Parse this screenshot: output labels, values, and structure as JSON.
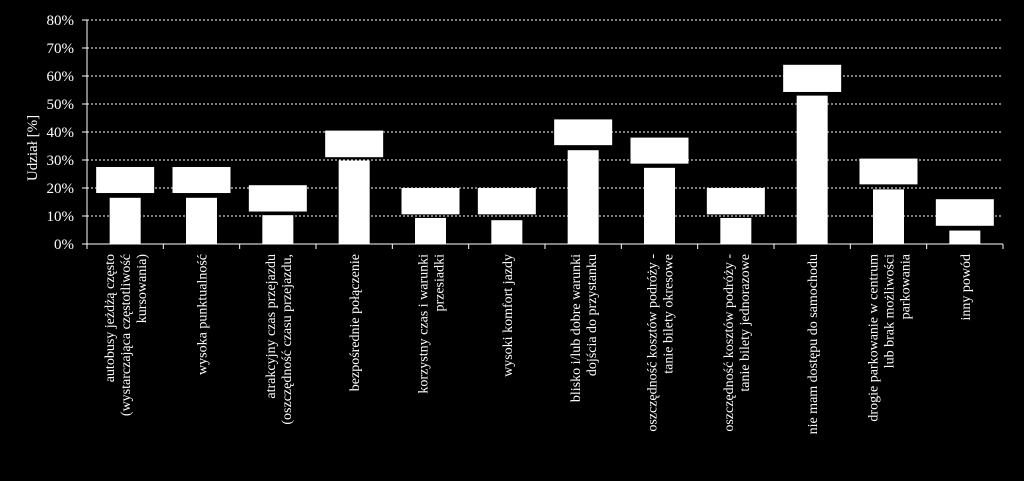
{
  "chart_data": {
    "type": "bar",
    "ylabel": "Udział [%]",
    "ylim": [
      0,
      80
    ],
    "yticks": [
      "0%",
      "10%",
      "20%",
      "30%",
      "40%",
      "50%",
      "60%",
      "70%",
      "80%"
    ],
    "grid": true,
    "categories": [
      [
        "autobusy jeżdżą często",
        "(wystarczająca częstotliwość",
        "kursowania)"
      ],
      [
        "wysoka punktualność"
      ],
      [
        "atrakcyjny czas przejazdu",
        "(oszczędność czasu przejazdu,"
      ],
      [
        "bezpośrednie połączenie"
      ],
      [
        "korzystny czas i warunki",
        "przesiadki"
      ],
      [
        "wysoki komfort jazdy"
      ],
      [
        "blisko i/lub dobre warunki",
        "dojścia do przystanku"
      ],
      [
        "oszczędność kosztów podróży -",
        "tanie bilety okresowe"
      ],
      [
        "oszczędność kosztów podróży -",
        "tanie bilety jednorazowe"
      ],
      [
        "nie mam dostępu do samochodu"
      ],
      [
        "drogie parkowanie w centrum",
        "lub brak możliwości",
        "parkowania"
      ],
      [
        "inny powód"
      ]
    ],
    "series": [
      {
        "values": [
          16.5,
          16.5,
          10.3,
          29.8,
          9.3,
          8.5,
          33.5,
          27.2,
          9.3,
          53.0,
          19.5,
          4.8
        ]
      },
      {
        "values": [
          27.5,
          27.5,
          21.0,
          40.5,
          20.0,
          20.0,
          44.5,
          38.0,
          20.0,
          64.0,
          30.5,
          16.0
        ]
      }
    ],
    "upper_low": [
      18.2,
      18.2,
      11.6,
      31.0,
      10.6,
      10.6,
      35.3,
      28.7,
      10.6,
      54.3,
      21.3,
      6.5
    ],
    "colors": {
      "background": "#000000",
      "bar": "#ffffff",
      "grid": "#ffffff",
      "axis": "#ffffff"
    }
  }
}
